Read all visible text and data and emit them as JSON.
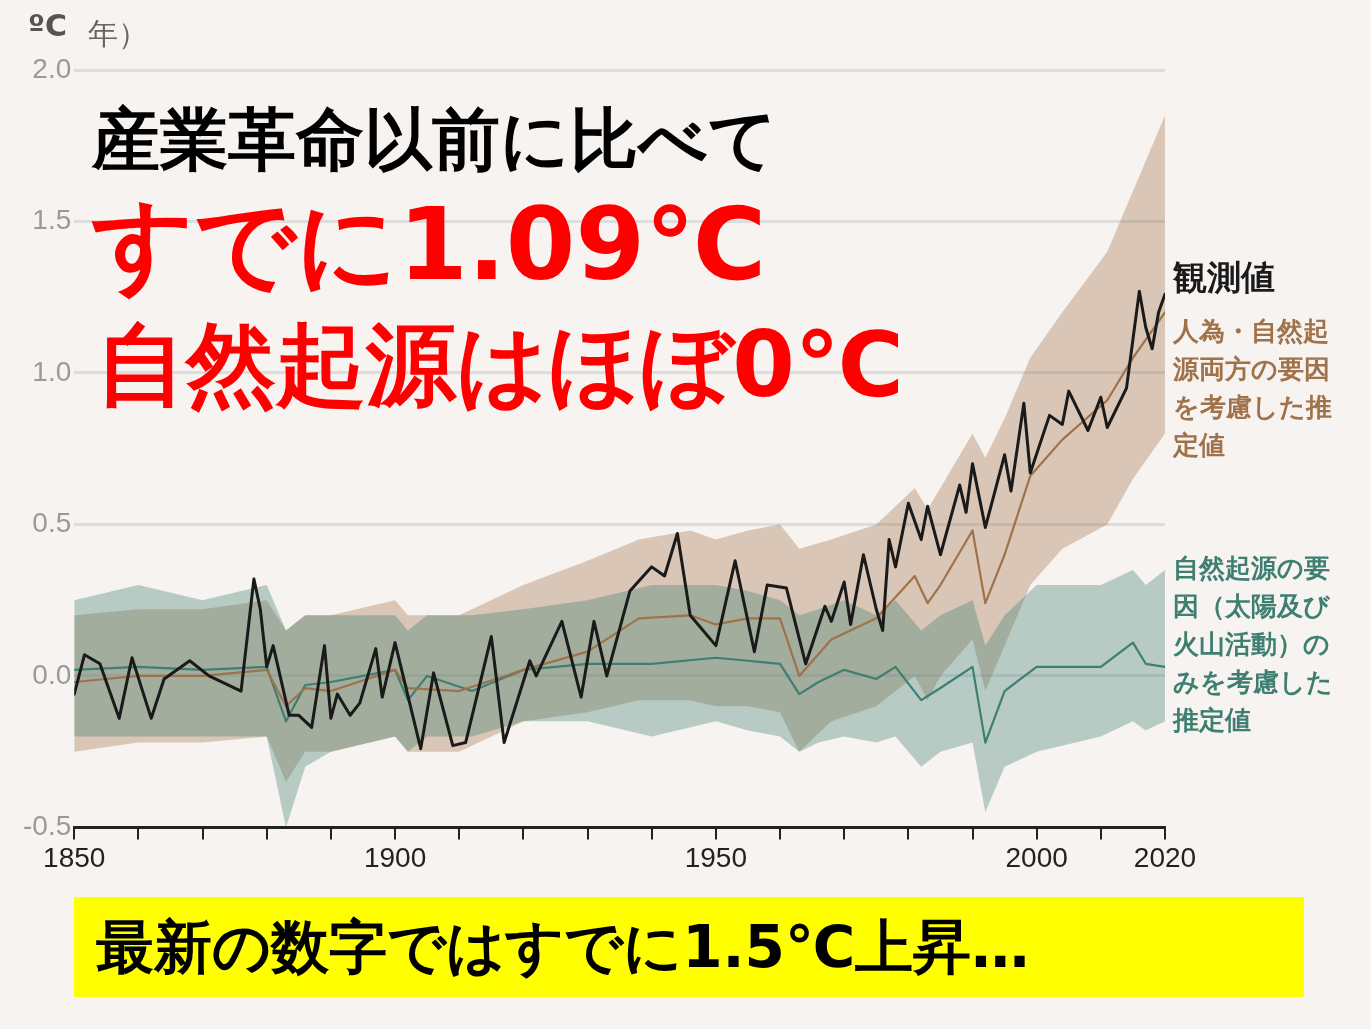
{
  "chart_data": {
    "type": "line",
    "ylabel": "ºC",
    "annotations": [
      "年）",
      "産業革命以前に比べて",
      "すでに1.09℃",
      "自然起源はほぼ0℃",
      "最新の数字ではすでに1.5℃上昇…"
    ],
    "xlim": [
      1850,
      2020
    ],
    "xticks": [
      1850,
      {
        "value": 1860,
        "label": null
      },
      {
        "value": 1870,
        "label": null
      },
      {
        "value": 1880,
        "label": null
      },
      {
        "value": 1890,
        "label": null
      },
      1900,
      {
        "value": 1910,
        "label": null
      },
      {
        "value": 1920,
        "label": null
      },
      {
        "value": 1930,
        "label": null
      },
      {
        "value": 1940,
        "label": null
      },
      1950,
      {
        "value": 1960,
        "label": null
      },
      {
        "value": 1970,
        "label": null
      },
      {
        "value": 1980,
        "label": null
      },
      {
        "value": 1990,
        "label": null
      },
      2000,
      {
        "value": 2010,
        "label": null
      },
      2020
    ],
    "ylim": [
      -0.5,
      2.0
    ],
    "yticks": [
      {
        "value": -0.5,
        "label": "-0.5"
      },
      {
        "value": 0,
        "label": "0.0"
      },
      {
        "value": 0.5,
        "label": "0.5"
      },
      {
        "value": 1,
        "label": "1.0"
      },
      {
        "value": 1.5,
        "label": "1.5"
      },
      {
        "value": 2,
        "label": "2.0"
      }
    ],
    "grid": "y",
    "legend": false,
    "marker": "none",
    "line_style": "solid",
    "series": [
      {
        "name": "自然起源の要因（太陽及び火山活動）のみを考慮した推定値",
        "color": "#3f7f72",
        "x": [
          1850,
          1860,
          1870,
          1880,
          1883,
          1886,
          1890,
          1900,
          1902,
          1905,
          1912,
          1920,
          1930,
          1940,
          1950,
          1955,
          1960,
          1963,
          1966,
          1970,
          1975,
          1978,
          1982,
          1985,
          1990,
          1992,
          1995,
          2000,
          2010,
          2015,
          2017,
          2020
        ],
        "values": [
          0.02,
          0.03,
          0.02,
          0.03,
          -0.15,
          -0.03,
          -0.02,
          0.02,
          -0.08,
          0.0,
          -0.05,
          0.02,
          0.04,
          0.04,
          0.06,
          0.05,
          0.04,
          -0.06,
          -0.02,
          0.02,
          -0.01,
          0.03,
          -0.08,
          -0.04,
          0.03,
          -0.22,
          -0.05,
          0.03,
          0.03,
          0.11,
          0.04,
          0.03
        ],
        "lower": [
          -0.2,
          -0.2,
          -0.2,
          -0.2,
          -0.5,
          -0.3,
          -0.25,
          -0.2,
          -0.25,
          -0.2,
          -0.2,
          -0.15,
          -0.15,
          -0.2,
          -0.15,
          -0.18,
          -0.2,
          -0.25,
          -0.22,
          -0.2,
          -0.22,
          -0.2,
          -0.3,
          -0.25,
          -0.22,
          -0.45,
          -0.3,
          -0.25,
          -0.2,
          -0.15,
          -0.18,
          -0.15
        ],
        "upper": [
          0.25,
          0.3,
          0.25,
          0.3,
          0.15,
          0.2,
          0.2,
          0.2,
          0.15,
          0.2,
          0.2,
          0.22,
          0.25,
          0.3,
          0.3,
          0.28,
          0.25,
          0.2,
          0.22,
          0.25,
          0.2,
          0.25,
          0.15,
          0.2,
          0.25,
          0.1,
          0.2,
          0.3,
          0.3,
          0.35,
          0.3,
          0.35
        ]
      },
      {
        "name": "人為・自然起源両方の要因を考慮した推定値",
        "color": "#a0724a",
        "x": [
          1850,
          1860,
          1870,
          1880,
          1883,
          1886,
          1890,
          1900,
          1902,
          1910,
          1920,
          1930,
          1938,
          1946,
          1950,
          1955,
          1960,
          1963,
          1968,
          1975,
          1981,
          1983,
          1985,
          1990,
          1992,
          1995,
          1999,
          2004,
          2011,
          2015,
          2020
        ],
        "values": [
          -0.02,
          0.0,
          0.0,
          0.02,
          -0.1,
          -0.04,
          -0.05,
          0.02,
          -0.04,
          -0.05,
          0.02,
          0.08,
          0.19,
          0.2,
          0.17,
          0.19,
          0.19,
          0.0,
          0.12,
          0.19,
          0.33,
          0.24,
          0.3,
          0.48,
          0.24,
          0.4,
          0.66,
          0.78,
          0.91,
          1.05,
          1.2
        ],
        "lower": [
          -0.25,
          -0.22,
          -0.22,
          -0.2,
          -0.35,
          -0.25,
          -0.25,
          -0.2,
          -0.25,
          -0.25,
          -0.15,
          -0.12,
          -0.08,
          -0.08,
          -0.1,
          -0.1,
          -0.12,
          -0.25,
          -0.15,
          -0.1,
          0.0,
          -0.08,
          0.0,
          0.12,
          -0.05,
          0.1,
          0.3,
          0.42,
          0.5,
          0.65,
          0.8
        ],
        "upper": [
          0.2,
          0.22,
          0.22,
          0.25,
          0.15,
          0.2,
          0.2,
          0.25,
          0.2,
          0.2,
          0.3,
          0.38,
          0.45,
          0.48,
          0.45,
          0.48,
          0.5,
          0.42,
          0.45,
          0.5,
          0.62,
          0.55,
          0.62,
          0.8,
          0.72,
          0.85,
          1.05,
          1.2,
          1.4,
          1.6,
          1.85
        ]
      },
      {
        "name": "観測値",
        "color": "#1a1a1a",
        "x": [
          1850,
          1851.6,
          1854,
          1857,
          1859,
          1862,
          1864,
          1868,
          1871,
          1876,
          1878,
          1879,
          1880,
          1881,
          1883.5,
          1885,
          1887,
          1889,
          1890,
          1891,
          1893,
          1894.5,
          1897,
          1898,
          1900,
          1904,
          1906,
          1909,
          1911,
          1915,
          1917,
          1921,
          1922,
          1926,
          1929,
          1931,
          1933,
          1936.6,
          1940,
          1942,
          1944,
          1946,
          1950,
          1953,
          1956,
          1958,
          1961,
          1964,
          1967,
          1968,
          1970,
          1971,
          1973,
          1975,
          1976,
          1977,
          1978,
          1980,
          1982,
          1983,
          1985,
          1988,
          1989,
          1990,
          1992,
          1995,
          1996,
          1998,
          1999,
          2002,
          2004,
          2005,
          2008,
          2010,
          2011,
          2014,
          2016,
          2017,
          2018,
          2019,
          2020
        ],
        "values": [
          -0.06,
          0.07,
          0.04,
          -0.14,
          0.06,
          -0.14,
          -0.01,
          0.05,
          0.0,
          -0.05,
          0.32,
          0.22,
          0.03,
          0.1,
          -0.13,
          -0.13,
          -0.17,
          0.1,
          -0.14,
          -0.06,
          -0.13,
          -0.09,
          0.09,
          -0.07,
          0.11,
          -0.24,
          0.01,
          -0.23,
          -0.22,
          0.13,
          -0.22,
          0.05,
          0.0,
          0.18,
          -0.07,
          0.18,
          0.0,
          0.28,
          0.36,
          0.33,
          0.47,
          0.2,
          0.1,
          0.38,
          0.08,
          0.3,
          0.29,
          0.04,
          0.23,
          0.18,
          0.31,
          0.17,
          0.4,
          0.22,
          0.15,
          0.45,
          0.36,
          0.57,
          0.45,
          0.56,
          0.4,
          0.63,
          0.54,
          0.7,
          0.49,
          0.73,
          0.61,
          0.9,
          0.67,
          0.86,
          0.83,
          0.94,
          0.81,
          0.92,
          0.82,
          0.95,
          1.27,
          1.15,
          1.08,
          1.2,
          1.26
        ]
      }
    ]
  }
}
